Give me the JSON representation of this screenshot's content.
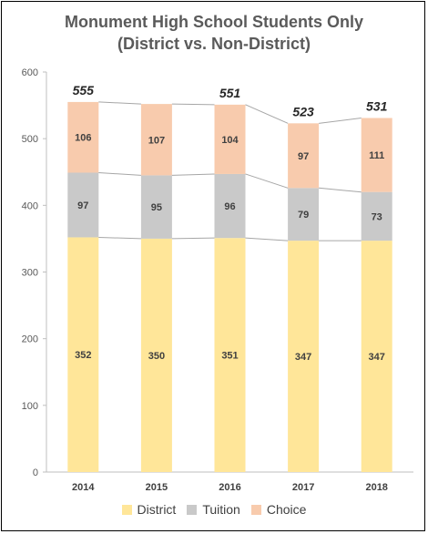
{
  "chart_data": {
    "type": "bar",
    "stacked": true,
    "title": "Monument High School Students Only",
    "subtitle": "(District vs. Non-District)",
    "categories": [
      "2014",
      "2015",
      "2016",
      "2017",
      "2018"
    ],
    "series": [
      {
        "name": "District",
        "values": [
          352,
          350,
          351,
          347,
          347
        ],
        "color": "#ffe699"
      },
      {
        "name": "Tuition",
        "values": [
          97,
          95,
          96,
          79,
          73
        ],
        "color": "#c9c9c9"
      },
      {
        "name": "Choice",
        "values": [
          106,
          107,
          104,
          97,
          111
        ],
        "color": "#f8cbad"
      }
    ],
    "totals": [
      555,
      551,
      551,
      523,
      531
    ],
    "total_labels": [
      "555",
      "",
      "551",
      "523",
      "531"
    ],
    "ylim": [
      0,
      600
    ],
    "yticks": [
      0,
      100,
      200,
      300,
      400,
      500,
      600
    ],
    "grid": false,
    "legend": "bottom",
    "series_lines": true
  }
}
